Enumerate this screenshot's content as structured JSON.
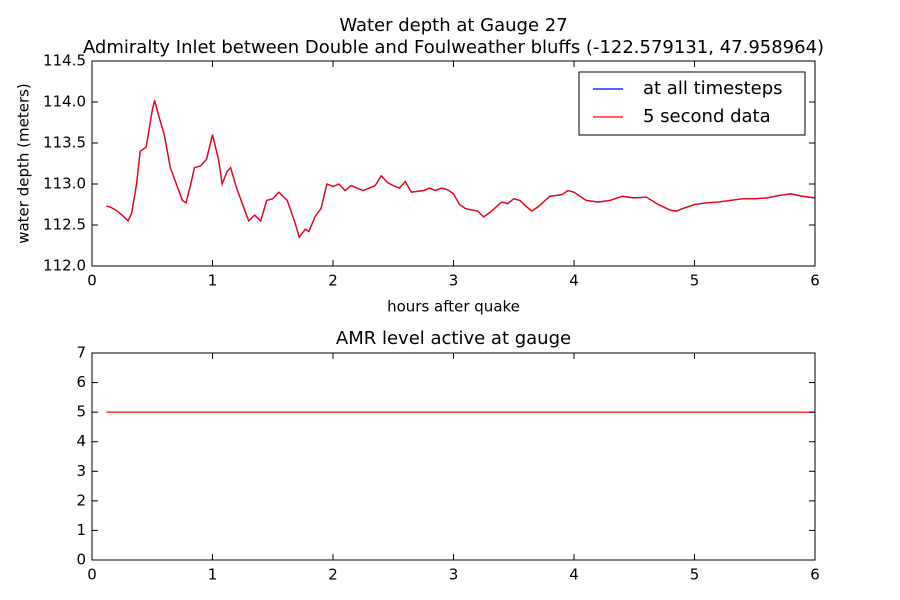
{
  "chart_data": [
    {
      "type": "line",
      "title": "Water depth at Gauge 27",
      "subtitle": "Admiralty Inlet between Double and Foulweather bluffs  (-122.579131, 47.958964)",
      "xlabel": "hours after quake",
      "ylabel": "water depth (meters)",
      "xlim": [
        0,
        6
      ],
      "xticks": [
        0,
        1,
        2,
        3,
        4,
        5,
        6
      ],
      "ylim": [
        112.0,
        114.5
      ],
      "yticks": [
        {
          "value": 112,
          "label": "112.0"
        },
        112.5,
        {
          "value": 113,
          "label": "113.0"
        },
        113.5,
        {
          "value": 114,
          "label": "114.0"
        },
        114.5
      ],
      "legend": "upper right",
      "x": [
        0.12,
        0.15,
        0.2,
        0.25,
        0.3,
        0.33,
        0.37,
        0.4,
        0.45,
        0.5,
        0.52,
        0.55,
        0.6,
        0.65,
        0.7,
        0.75,
        0.78,
        0.82,
        0.85,
        0.9,
        0.95,
        1.0,
        1.05,
        1.08,
        1.12,
        1.15,
        1.2,
        1.25,
        1.3,
        1.35,
        1.4,
        1.45,
        1.5,
        1.55,
        1.62,
        1.68,
        1.72,
        1.77,
        1.8,
        1.85,
        1.9,
        1.95,
        2.0,
        2.05,
        2.1,
        2.15,
        2.2,
        2.25,
        2.3,
        2.35,
        2.4,
        2.45,
        2.5,
        2.55,
        2.6,
        2.65,
        2.75,
        2.8,
        2.85,
        2.9,
        2.95,
        3.0,
        3.05,
        3.1,
        3.2,
        3.25,
        3.3,
        3.4,
        3.45,
        3.5,
        3.55,
        3.6,
        3.65,
        3.7,
        3.8,
        3.9,
        3.95,
        4.0,
        4.1,
        4.2,
        4.3,
        4.4,
        4.5,
        4.6,
        4.7,
        4.8,
        4.85,
        4.9,
        5.0,
        5.1,
        5.2,
        5.3,
        5.4,
        5.5,
        5.6,
        5.7,
        5.8,
        5.9,
        6.0
      ],
      "series": [
        {
          "name": "at all timesteps",
          "color": "#0000ff",
          "values": [
            112.73,
            112.72,
            112.68,
            112.62,
            112.55,
            112.65,
            113.0,
            113.4,
            113.45,
            113.9,
            114.02,
            113.85,
            113.6,
            113.2,
            113.0,
            112.8,
            112.77,
            113.0,
            113.2,
            113.22,
            113.3,
            113.6,
            113.3,
            113.0,
            113.15,
            113.2,
            112.95,
            112.75,
            112.55,
            112.62,
            112.55,
            112.8,
            112.82,
            112.9,
            112.8,
            112.55,
            112.35,
            112.45,
            112.42,
            112.6,
            112.7,
            113.0,
            112.97,
            113.0,
            112.92,
            112.98,
            112.95,
            112.92,
            112.95,
            112.98,
            113.1,
            113.02,
            112.98,
            112.95,
            113.03,
            112.9,
            112.92,
            112.95,
            112.92,
            112.95,
            112.93,
            112.88,
            112.75,
            112.7,
            112.67,
            112.6,
            112.65,
            112.78,
            112.76,
            112.82,
            112.8,
            112.73,
            112.67,
            112.72,
            112.85,
            112.87,
            112.92,
            112.9,
            112.8,
            112.78,
            112.8,
            112.85,
            112.83,
            112.84,
            112.75,
            112.68,
            112.67,
            112.7,
            112.75,
            112.77,
            112.78,
            112.8,
            112.82,
            112.82,
            112.83,
            112.86,
            112.88,
            112.85,
            112.83
          ]
        },
        {
          "name": "5 second data",
          "color": "#ff0000",
          "values": [
            112.73,
            112.72,
            112.68,
            112.62,
            112.55,
            112.65,
            113.0,
            113.4,
            113.45,
            113.9,
            114.02,
            113.85,
            113.6,
            113.2,
            113.0,
            112.8,
            112.77,
            113.0,
            113.2,
            113.22,
            113.3,
            113.6,
            113.3,
            113.0,
            113.15,
            113.2,
            112.95,
            112.75,
            112.55,
            112.62,
            112.55,
            112.8,
            112.82,
            112.9,
            112.8,
            112.55,
            112.35,
            112.45,
            112.42,
            112.6,
            112.7,
            113.0,
            112.97,
            113.0,
            112.92,
            112.98,
            112.95,
            112.92,
            112.95,
            112.98,
            113.1,
            113.02,
            112.98,
            112.95,
            113.03,
            112.9,
            112.92,
            112.95,
            112.92,
            112.95,
            112.93,
            112.88,
            112.75,
            112.7,
            112.67,
            112.6,
            112.65,
            112.78,
            112.76,
            112.82,
            112.8,
            112.73,
            112.67,
            112.72,
            112.85,
            112.87,
            112.92,
            112.9,
            112.8,
            112.78,
            112.8,
            112.85,
            112.83,
            112.84,
            112.75,
            112.68,
            112.67,
            112.7,
            112.75,
            112.77,
            112.78,
            112.8,
            112.82,
            112.82,
            112.83,
            112.86,
            112.88,
            112.85,
            112.83
          ]
        }
      ]
    },
    {
      "type": "line",
      "title": "AMR level active at gauge",
      "xlim": [
        0,
        6
      ],
      "xticks": [
        0,
        1,
        2,
        3,
        4,
        5,
        6
      ],
      "ylim": [
        0,
        7
      ],
      "yticks": [
        0,
        1,
        2,
        3,
        4,
        5,
        6,
        7
      ],
      "x": [
        0.12,
        6.0
      ],
      "series": [
        {
          "color": "#ff0000",
          "values": [
            5,
            5
          ]
        }
      ]
    }
  ]
}
